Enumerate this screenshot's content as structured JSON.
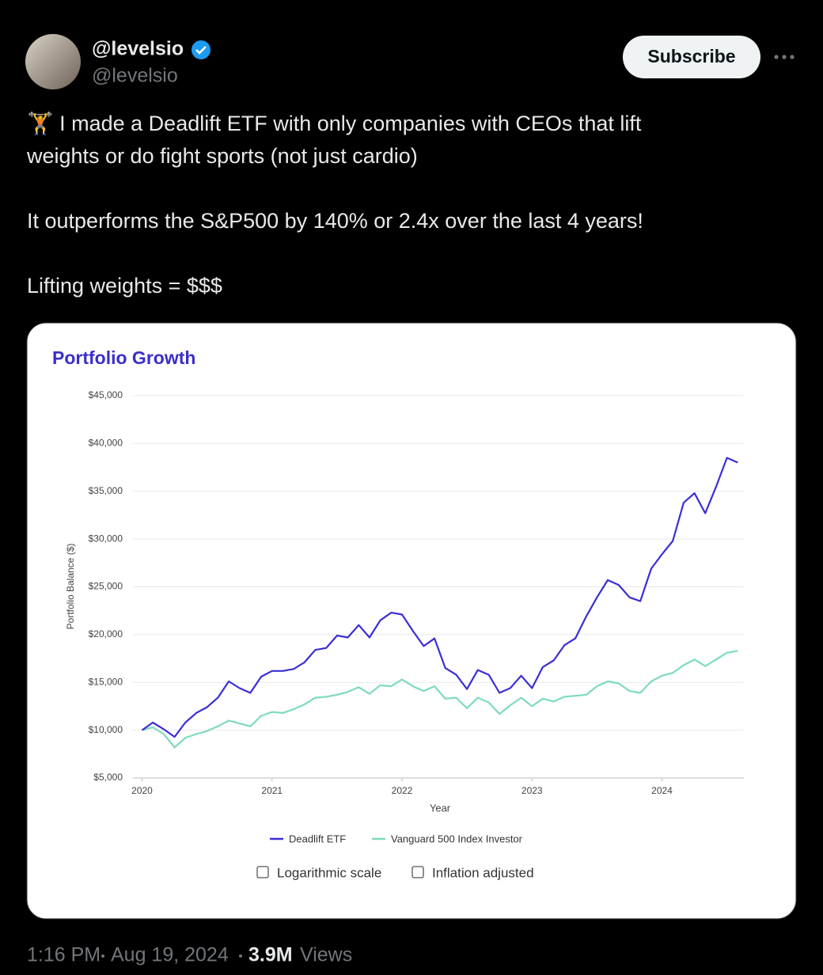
{
  "tweet": {
    "author": "@levelsio",
    "handle": "@levelsio",
    "button": "Subscribe",
    "body": [
      [
        "🏋️ I made a Deadlift ETF with only companies with CEOs that lift",
        "weights or do fight sports (not just cardio)"
      ],
      [
        "It outperforms the S&P500 by 140% or 2.4x over the last 4 years!"
      ],
      [
        "Lifting weights = $$$"
      ]
    ],
    "time": "1:16 PM",
    "date": "Aug 19, 2024",
    "views_count": "3.9M",
    "views_label": "Views",
    "options": [
      {
        "label": "Logarithmic scale",
        "checked": false
      },
      {
        "label": "Inflation adjusted",
        "checked": false
      }
    ]
  },
  "chart_data": {
    "type": "line",
    "title": "Portfolio Growth",
    "x_label": "Year",
    "y_label": "Portfolio Balance ($)",
    "x": [
      2020,
      2020.083,
      2020.167,
      2020.25,
      2020.333,
      2020.417,
      2020.5,
      2020.583,
      2020.667,
      2020.75,
      2020.833,
      2020.917,
      2021,
      2021.083,
      2021.167,
      2021.25,
      2021.333,
      2021.417,
      2021.5,
      2021.583,
      2021.667,
      2021.75,
      2021.833,
      2021.917,
      2022,
      2022.083,
      2022.167,
      2022.25,
      2022.333,
      2022.417,
      2022.5,
      2022.583,
      2022.667,
      2022.75,
      2022.833,
      2022.917,
      2023,
      2023.083,
      2023.167,
      2023.25,
      2023.333,
      2023.417,
      2023.5,
      2023.583,
      2023.667,
      2023.75,
      2023.833,
      2023.917,
      2024,
      2024.083,
      2024.167,
      2024.25,
      2024.333,
      2024.417,
      2024.5,
      2024.583
    ],
    "series": [
      {
        "name": "Deadlift ETF",
        "color": "#3a2ed6",
        "values": [
          10000,
          10800,
          10100,
          9300,
          10800,
          11800,
          12400,
          13400,
          15100,
          14400,
          13900,
          15600,
          16200,
          16200,
          16400,
          17100,
          18400,
          18600,
          19900,
          19700,
          21000,
          19700,
          21500,
          22300,
          22100,
          20400,
          18800,
          19600,
          16500,
          15800,
          14300,
          16300,
          15800,
          13900,
          14400,
          15700,
          14400,
          16600,
          17300,
          18900,
          19600,
          21900,
          23900,
          25700,
          25200,
          23900,
          23500,
          26900,
          28400,
          29800,
          33800,
          34800,
          32700,
          35500,
          38500,
          38000
        ]
      },
      {
        "name": "Vanguard 500 Index Investor",
        "color": "#7ddcb8",
        "values": [
          10000,
          10300,
          9600,
          8200,
          9200,
          9600,
          9900,
          10400,
          11000,
          10700,
          10400,
          11500,
          11900,
          11800,
          12200,
          12700,
          13400,
          13500,
          13700,
          14000,
          14500,
          13800,
          14700,
          14600,
          15300,
          14600,
          14100,
          14600,
          13300,
          13400,
          12300,
          13400,
          12900,
          11700,
          12600,
          13400,
          12500,
          13300,
          13000,
          13500,
          13600,
          13700,
          14600,
          15100,
          14900,
          14100,
          13900,
          15100,
          15700,
          16000,
          16800,
          17400,
          16700,
          17400,
          18100,
          18300
        ]
      }
    ],
    "xlim": [
      2019.93,
      2024.63
    ],
    "ylim": [
      5000,
      45000
    ],
    "xticks": [
      2020,
      2021,
      2022,
      2023,
      2024
    ],
    "yticks": [
      {
        "value": 5000,
        "label": "$5,000"
      },
      {
        "value": 10000,
        "label": "$10,000"
      },
      {
        "value": 15000,
        "label": "$15,000"
      },
      {
        "value": 20000,
        "label": "$20,000"
      },
      {
        "value": 25000,
        "label": "$25,000"
      },
      {
        "value": 30000,
        "label": "$30,000"
      },
      {
        "value": 35000,
        "label": "$35,000"
      },
      {
        "value": 40000,
        "label": "$40,000"
      },
      {
        "value": 45000,
        "label": "$45,000"
      }
    ],
    "grid": true,
    "legend": "bottom"
  }
}
